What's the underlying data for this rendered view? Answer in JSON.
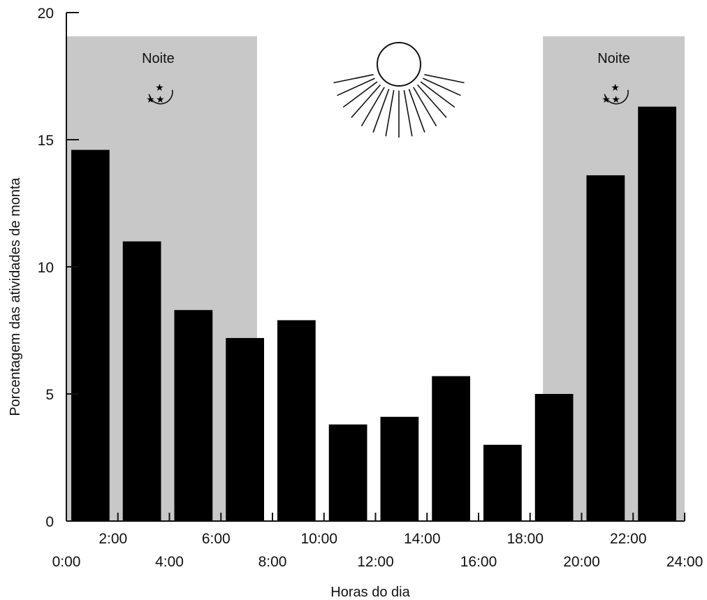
{
  "chart_data": {
    "type": "bar",
    "title": "",
    "xlabel": "Horas do dia",
    "ylabel": "Porcentagem das atividades de monta",
    "ylim": [
      0,
      20
    ],
    "xlim": [
      0,
      24
    ],
    "yticks": [
      0,
      5,
      10,
      15,
      20
    ],
    "xticks_lower": [
      "0:00",
      "4:00",
      "8:00",
      "12:00",
      "16:00",
      "20:00",
      "24:00"
    ],
    "xticks_upper": [
      "2:00",
      "6:00",
      "10:00",
      "14:00",
      "18:00",
      "22:00"
    ],
    "bin_width_hours": 2,
    "bins_start_hours": [
      0,
      2,
      4,
      6,
      8,
      10,
      12,
      14,
      16,
      18,
      20,
      22
    ],
    "values": [
      14.6,
      11.0,
      8.3,
      7.2,
      7.9,
      3.8,
      4.1,
      5.7,
      3.0,
      5.0,
      13.6,
      16.3
    ],
    "night_bands": [
      {
        "label": "Noite",
        "start_hour": 0,
        "end_hour": 7.4
      },
      {
        "label": "Noite",
        "start_hour": 18.5,
        "end_hour": 24
      }
    ],
    "colors": {
      "bar": "#000000",
      "night_band": "#c8c8c8",
      "axis": "#111111"
    },
    "grid": false,
    "icons": [
      "moon-stars-icon",
      "sun-icon",
      "moon-stars-icon"
    ]
  }
}
